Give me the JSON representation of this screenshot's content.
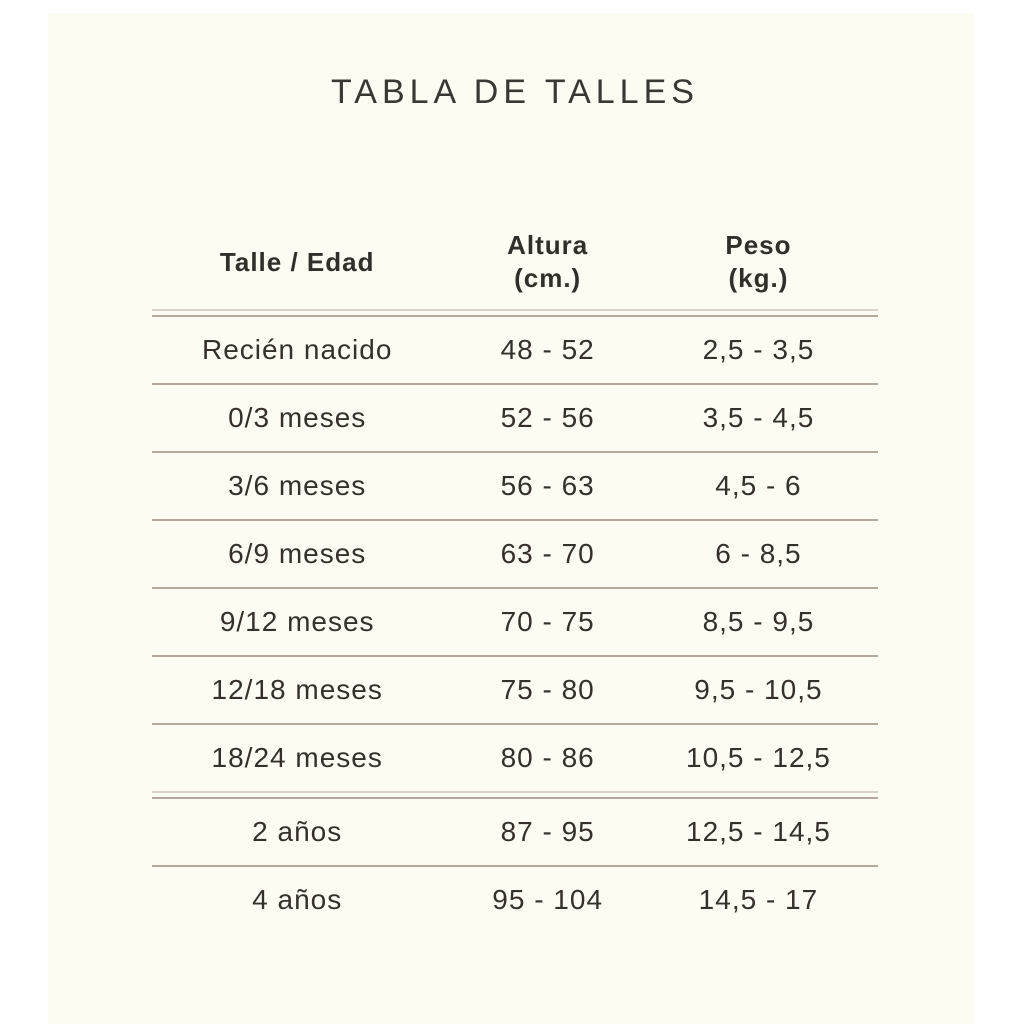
{
  "page": {
    "title": "TABLA DE TALLES"
  },
  "table": {
    "columns": [
      {
        "label": "Talle / Edad"
      },
      {
        "label": "Altura",
        "sub": "(cm.)"
      },
      {
        "label": "Peso",
        "sub": "(kg.)"
      }
    ],
    "rows": [
      {
        "talle": "Recién nacido",
        "altura": "48 - 52",
        "peso": "2,5 - 3,5"
      },
      {
        "talle": "0/3 meses",
        "altura": "52 - 56",
        "peso": "3,5 - 4,5"
      },
      {
        "talle": "3/6 meses",
        "altura": "56 - 63",
        "peso": "4,5 - 6"
      },
      {
        "talle": "6/9 meses",
        "altura": "63 - 70",
        "peso": "6 - 8,5"
      },
      {
        "talle": "9/12 meses",
        "altura": "70 - 75",
        "peso": "8,5 - 9,5"
      },
      {
        "talle": "12/18 meses",
        "altura": "75 - 80",
        "peso": "9,5 - 10,5"
      },
      {
        "talle": "18/24 meses",
        "altura": "80 - 86",
        "peso": "10,5 - 12,5"
      },
      {
        "talle": "2 años",
        "altura": "87 - 95",
        "peso": "12,5 - 14,5"
      },
      {
        "talle": "4 años",
        "altura": "95 - 104",
        "peso": "14,5 - 17"
      }
    ]
  },
  "colors": {
    "panel_bg": "#fcfcf2",
    "title_text": "#3b3733",
    "header_text": "#322e29",
    "body_text": "#35302a",
    "line_dark": "#b2a99c",
    "line_light": "#d8d2c7"
  }
}
